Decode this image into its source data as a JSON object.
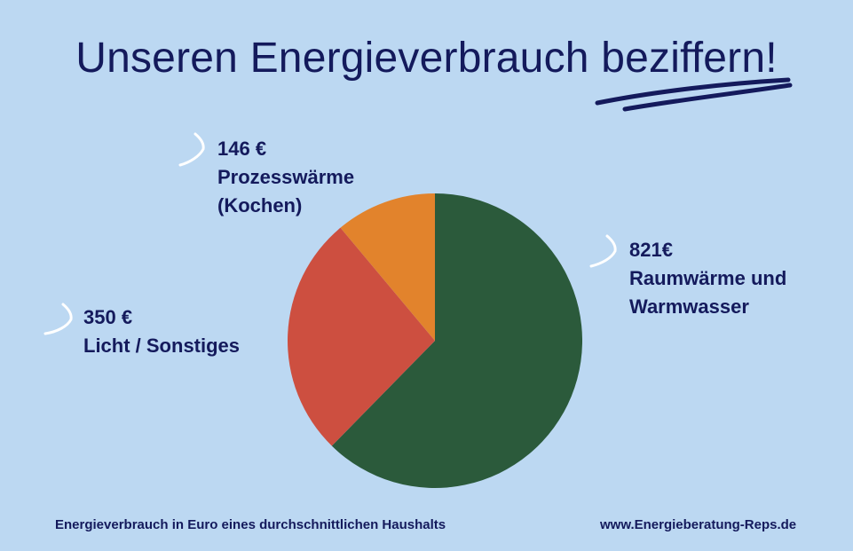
{
  "title": "Unseren Energieverbrauch beziffern!",
  "footer": {
    "caption": "Energieverbrauch in Euro eines durchschnittlichen Haushalts",
    "website": "www.Energieberatung-Reps.de"
  },
  "labels": {
    "heat": {
      "value": "821€",
      "line1": "Raumwärme und",
      "line2": "Warmwasser"
    },
    "process": {
      "value": "146 €",
      "line1": "Prozesswärme",
      "line2": "(Kochen)"
    },
    "light": {
      "value": "350 €",
      "line1": "Licht / Sonstiges"
    }
  },
  "colors": {
    "background": "#bcd8f2",
    "text": "#141a5c"
  },
  "chart_data": {
    "type": "pie",
    "title": "Unseren Energieverbrauch beziffern!",
    "start_angle": "12 o'clock",
    "direction": "clockwise",
    "slices": [
      {
        "label": "Raumwärme und Warmwasser",
        "value": 821,
        "color": "#2b5a3b"
      },
      {
        "label": "Licht / Sonstiges",
        "value": 350,
        "color": "#cd4f40"
      },
      {
        "label": "Prozesswärme (Kochen)",
        "value": 146,
        "color": "#e2832c"
      }
    ]
  }
}
